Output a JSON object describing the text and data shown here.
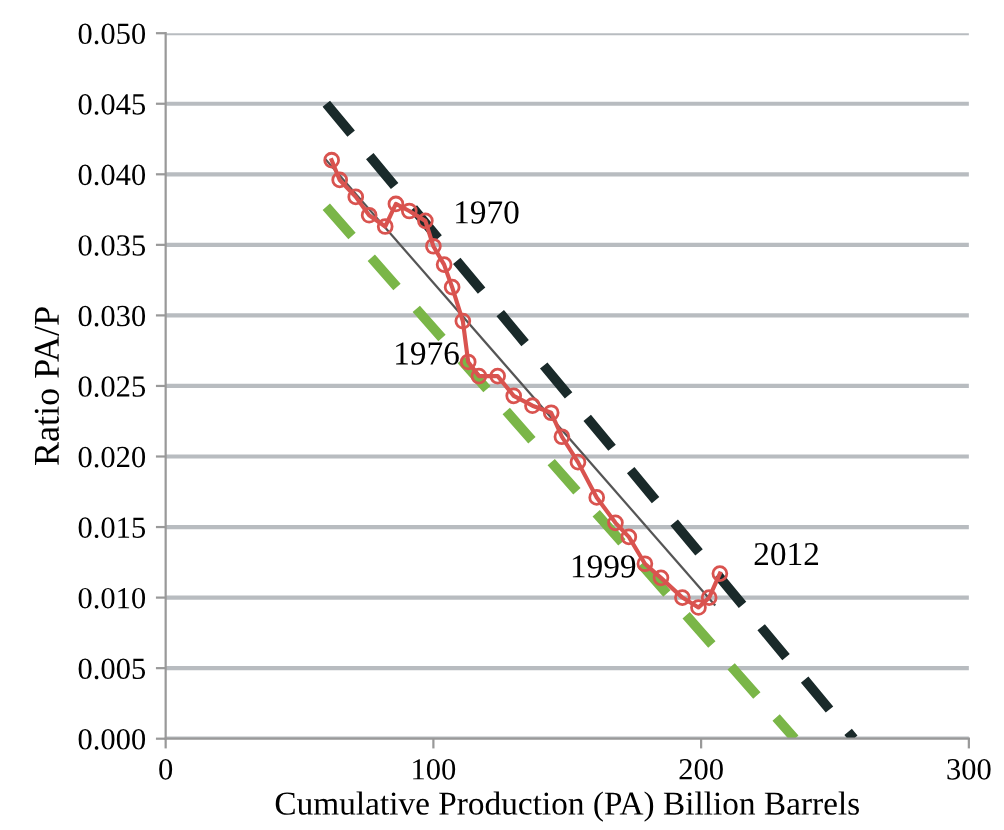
{
  "chart_data": {
    "type": "line",
    "xlabel": "Cumulative Production (PA) Billion Barrels",
    "ylabel": "Ratio PA/P",
    "xlim": [
      0,
      300
    ],
    "xticks": [
      0,
      100,
      200,
      300
    ],
    "ylim": [
      0,
      0.05
    ],
    "yticks": [
      {
        "value": 0,
        "label": "0.000"
      },
      {
        "value": 0.005,
        "label": "0.005"
      },
      {
        "value": 0.01,
        "label": "0.010"
      },
      {
        "value": 0.015,
        "label": "0.015"
      },
      {
        "value": 0.02,
        "label": "0.020"
      },
      {
        "value": 0.025,
        "label": "0.025"
      },
      {
        "value": 0.03,
        "label": "0.030"
      },
      {
        "value": 0.035,
        "label": "0.035"
      },
      {
        "value": 0.04,
        "label": "0.040"
      },
      {
        "value": 0.045,
        "label": "0.045"
      },
      {
        "value": 0.05,
        "label": "0.050"
      }
    ],
    "grid": "y",
    "legend": false,
    "series": [
      {
        "color": "#d9534f",
        "marker": "circle",
        "line_style": "solid",
        "x": [
          62,
          65,
          71,
          76,
          82,
          86,
          91,
          97,
          100,
          104,
          107,
          111,
          113,
          117,
          124,
          130,
          137,
          144,
          148,
          154,
          161,
          168,
          173,
          179,
          185,
          193,
          199,
          203,
          207
        ],
        "values": [
          0.041,
          0.0396,
          0.0384,
          0.0371,
          0.0363,
          0.0379,
          0.0374,
          0.0367,
          0.0349,
          0.0336,
          0.032,
          0.0296,
          0.0267,
          0.0257,
          0.0257,
          0.0243,
          0.0236,
          0.0231,
          0.0214,
          0.0196,
          0.0171,
          0.0153,
          0.0143,
          0.0124,
          0.0114,
          0.01,
          0.0093,
          0.01,
          0.0117
        ]
      },
      {
        "color": "#555555",
        "marker": "none",
        "line_style": "solid",
        "x": [
          60,
          205
        ],
        "values": [
          0.041,
          0.0095
        ]
      },
      {
        "color": "#1a2a2a",
        "marker": "none",
        "line_style": "dashed",
        "x": [
          60,
          257
        ],
        "values": [
          0.045,
          0.0
        ]
      },
      {
        "color": "#7ab648",
        "marker": "none",
        "line_style": "dashed",
        "x": [
          60,
          235
        ],
        "values": [
          0.0377,
          0.0
        ]
      }
    ],
    "annotations": [
      {
        "text": "1970",
        "x": 97,
        "y": 0.0367
      },
      {
        "text": "1976",
        "x": 113,
        "y": 0.0267
      },
      {
        "text": "1999",
        "x": 179,
        "y": 0.0124
      },
      {
        "text": "2012",
        "x": 207,
        "y": 0.0117
      }
    ]
  }
}
